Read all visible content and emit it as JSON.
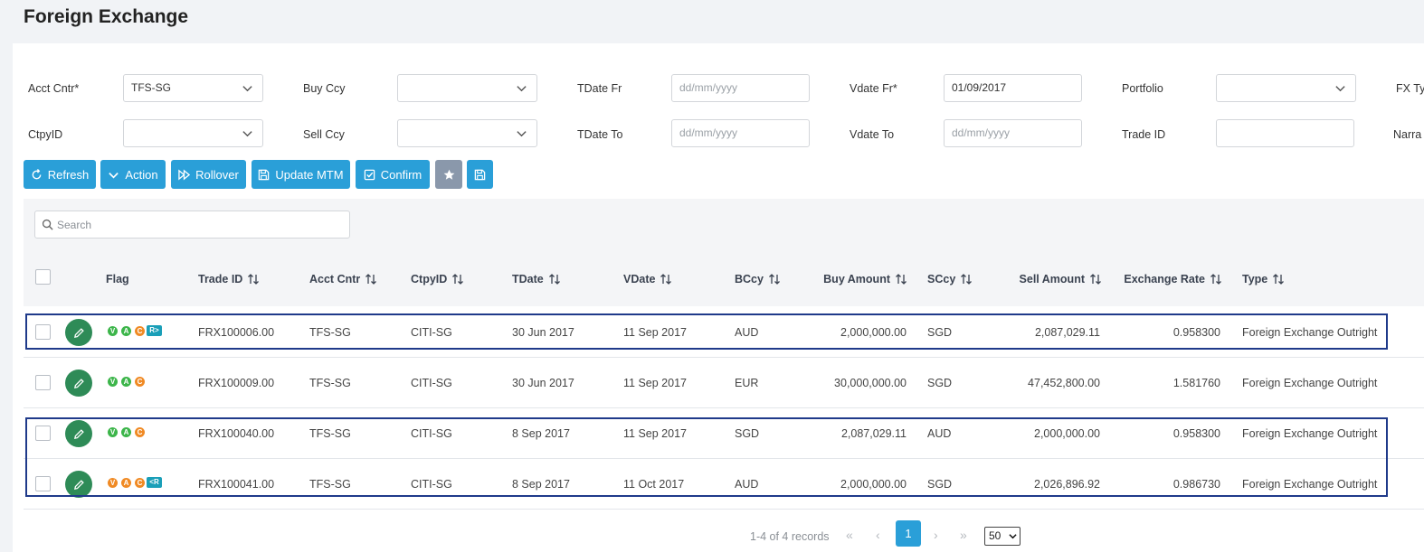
{
  "page": {
    "title": "Foreign Exchange"
  },
  "filters": {
    "acct_cntr": {
      "label": "Acct Cntr*",
      "value": "TFS-SG"
    },
    "buy_ccy": {
      "label": "Buy Ccy",
      "value": ""
    },
    "tdate_fr": {
      "label": "TDate Fr",
      "placeholder": "dd/mm/yyyy"
    },
    "vdate_fr": {
      "label": "Vdate Fr*",
      "value": "01/09/2017"
    },
    "portfolio": {
      "label": "Portfolio",
      "value": ""
    },
    "fx_type": {
      "label": "FX Ty"
    },
    "ctpy_id": {
      "label": "CtpyID",
      "value": ""
    },
    "sell_ccy": {
      "label": "Sell Ccy",
      "value": ""
    },
    "tdate_to": {
      "label": "TDate To",
      "placeholder": "dd/mm/yyyy"
    },
    "vdate_to": {
      "label": "Vdate To",
      "placeholder": "dd/mm/yyyy"
    },
    "trade_id": {
      "label": "Trade ID",
      "value": ""
    },
    "narrative": {
      "label": "Narra"
    }
  },
  "toolbar": {
    "refresh": "Refresh",
    "action": "Action",
    "rollover": "Rollover",
    "update_mtm": "Update MTM",
    "confirm": "Confirm"
  },
  "search": {
    "placeholder": "Search"
  },
  "table": {
    "headers": {
      "flag": "Flag",
      "trade_id": "Trade ID",
      "acct_cntr": "Acct Cntr",
      "ctpy_id": "CtpyID",
      "tdate": "TDate",
      "vdate": "VDate",
      "bccy": "BCcy",
      "buy_amount": "Buy Amount",
      "sccy": "SCcy",
      "sell_amount": "Sell Amount",
      "exchange_rate": "Exchange Rate",
      "type": "Type"
    },
    "rows": [
      {
        "flags": [
          "V",
          "A",
          "C",
          "R>"
        ],
        "trade_id": "FRX100006.00",
        "acct_cntr": "TFS-SG",
        "ctpy_id": "CITI-SG",
        "tdate": "30 Jun 2017",
        "vdate": "11 Sep 2017",
        "bccy": "AUD",
        "buy_amount": "2,000,000.00",
        "sccy": "SGD",
        "sell_amount": "2,087,029.11",
        "exchange_rate": "0.958300",
        "type": "Foreign Exchange Outright"
      },
      {
        "flags": [
          "V",
          "A",
          "C"
        ],
        "trade_id": "FRX100009.00",
        "acct_cntr": "TFS-SG",
        "ctpy_id": "CITI-SG",
        "tdate": "30 Jun 2017",
        "vdate": "11 Sep 2017",
        "bccy": "EUR",
        "buy_amount": "30,000,000.00",
        "sccy": "SGD",
        "sell_amount": "47,452,800.00",
        "exchange_rate": "1.581760",
        "type": "Foreign Exchange Outright"
      },
      {
        "flags": [
          "V",
          "A",
          "C"
        ],
        "trade_id": "FRX100040.00",
        "acct_cntr": "TFS-SG",
        "ctpy_id": "CITI-SG",
        "tdate": "8 Sep 2017",
        "vdate": "11 Sep 2017",
        "bccy": "SGD",
        "buy_amount": "2,087,029.11",
        "sccy": "AUD",
        "sell_amount": "2,000,000.00",
        "exchange_rate": "0.958300",
        "type": "Foreign Exchange Outright"
      },
      {
        "flags": [
          "V",
          "A",
          "C",
          "<R"
        ],
        "trade_id": "FRX100041.00",
        "acct_cntr": "TFS-SG",
        "ctpy_id": "CITI-SG",
        "tdate": "8 Sep 2017",
        "vdate": "11 Oct 2017",
        "bccy": "AUD",
        "buy_amount": "2,000,000.00",
        "sccy": "SGD",
        "sell_amount": "2,026,896.92",
        "exchange_rate": "0.986730",
        "type": "Foreign Exchange Outright"
      }
    ]
  },
  "pagination": {
    "summary": "1-4 of 4 records",
    "current_page": "1",
    "page_size": "50"
  },
  "colors": {
    "primary": "#2a9fd8",
    "edit": "#2e8b57",
    "flag_green": "#3cb54a",
    "flag_orange": "#f08a24",
    "flag_tag": "#1a9fb8",
    "highlight": "#1f3a8a"
  }
}
